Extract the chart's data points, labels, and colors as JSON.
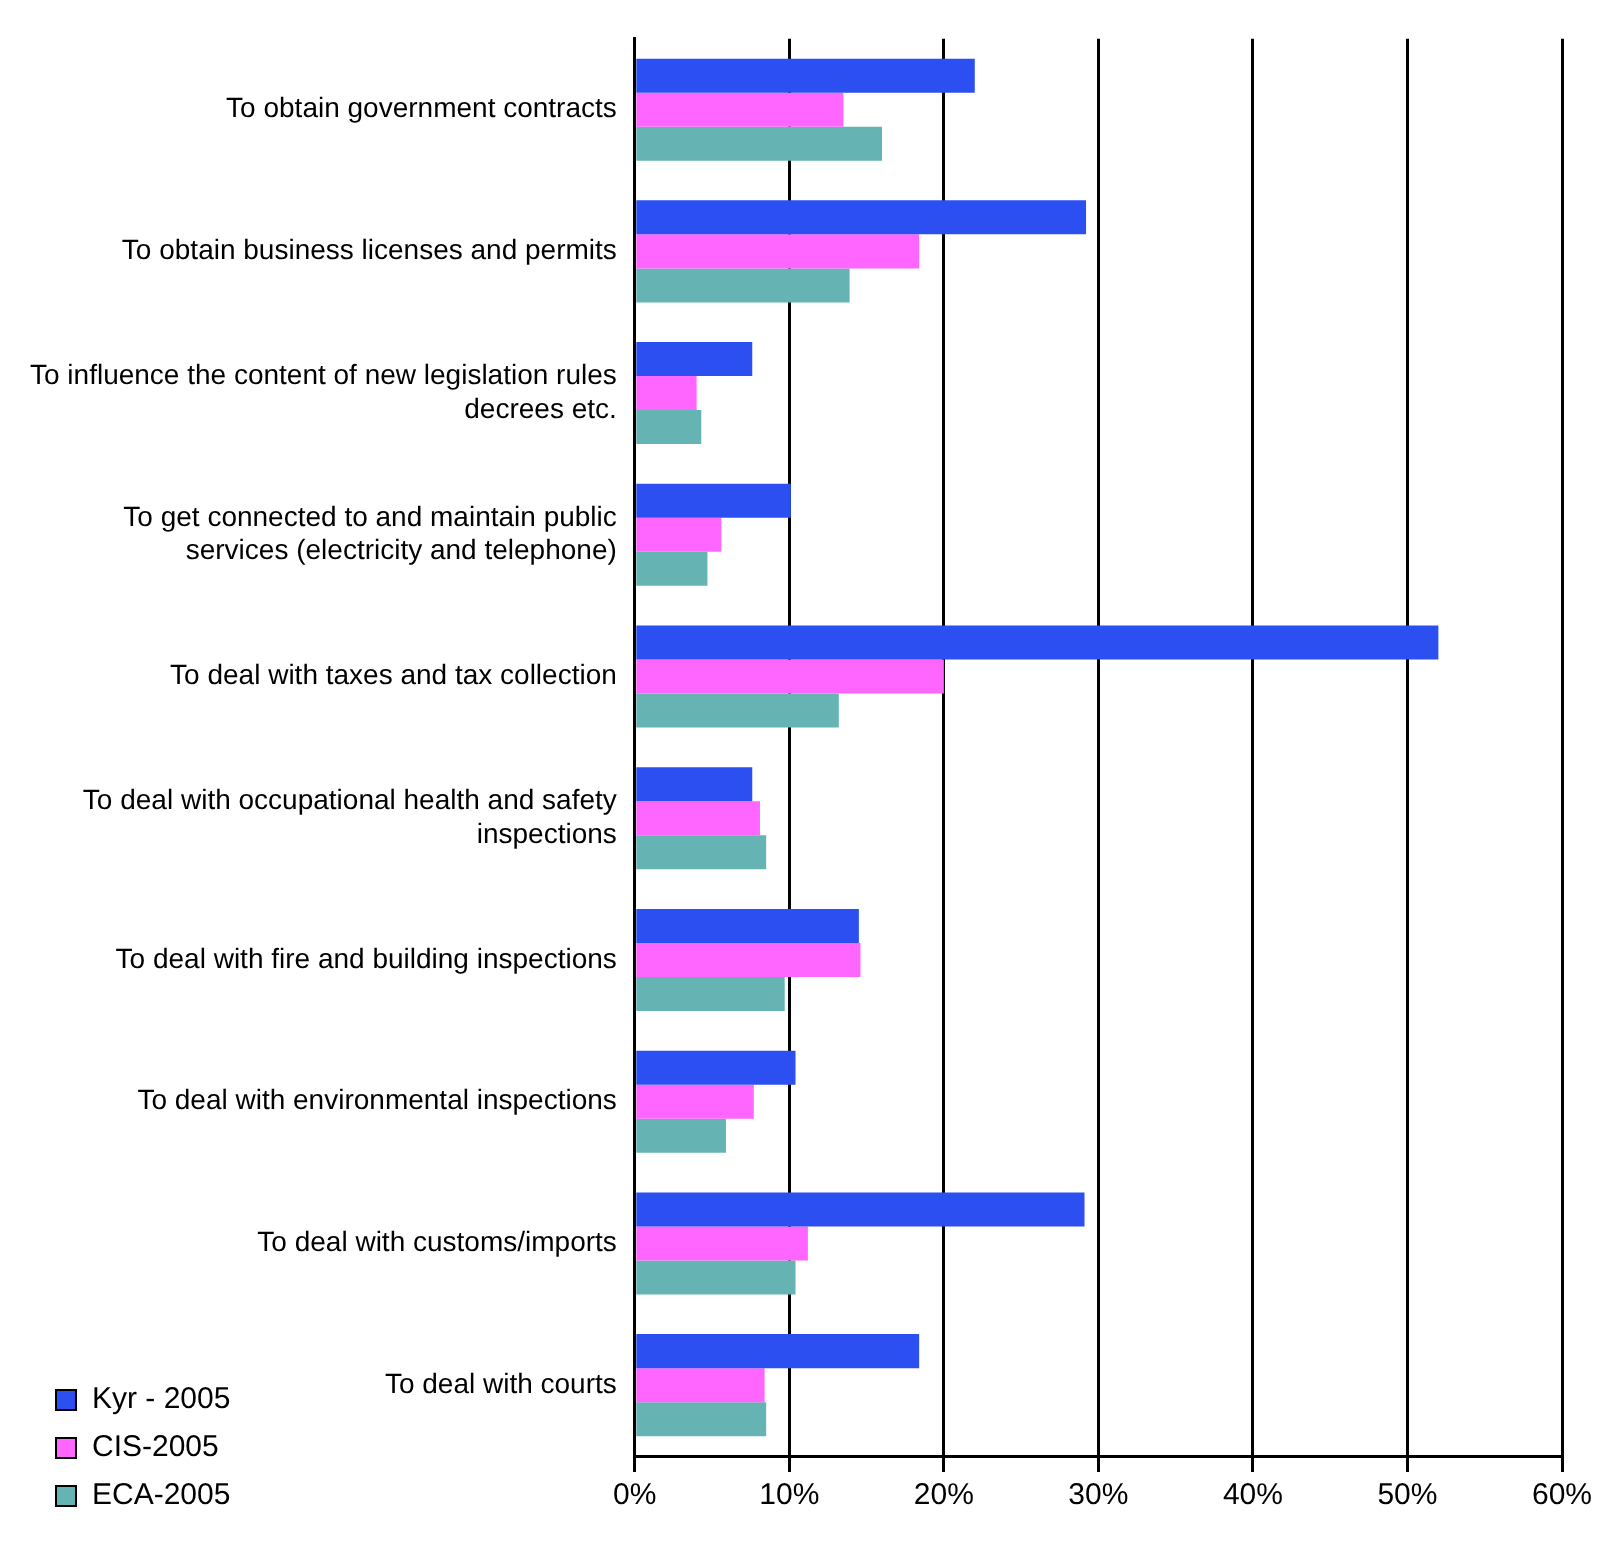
{
  "chart_data": {
    "type": "bar",
    "orientation": "horizontal",
    "categories": [
      "To obtain government contracts",
      "To obtain business licenses and permits",
      "To influence the content of new legislation rules decrees etc.",
      "To get connected to and maintain public services (electricity and telephone)",
      "To deal with taxes and tax collection",
      "To deal with occupational health and safety inspections",
      "To deal with fire and building inspections",
      "To deal with environmental inspections",
      "To deal with customs/imports",
      "To deal with courts"
    ],
    "series": [
      {
        "name": "Kyr - 2005",
        "color": "#2b4ff0",
        "values": [
          22,
          29.2,
          7.6,
          10.1,
          52,
          7.6,
          14.5,
          10.4,
          29.1,
          18.4
        ]
      },
      {
        "name": "CIS-2005",
        "color": "#ff66ff",
        "values": [
          13.5,
          18.4,
          4,
          5.6,
          20,
          8.1,
          14.6,
          7.7,
          11.2,
          8.4
        ]
      },
      {
        "name": "ECA-2005",
        "color": "#66b3b3",
        "values": [
          16,
          13.9,
          4.3,
          4.7,
          13.2,
          8.5,
          9.7,
          5.9,
          10.4,
          8.5
        ]
      }
    ],
    "xlim": [
      0,
      60
    ],
    "xticks": [
      {
        "value": 0,
        "label": "0%"
      },
      {
        "value": 10,
        "label": "10%"
      },
      {
        "value": 20,
        "label": "20%"
      },
      {
        "value": 30,
        "label": "30%"
      },
      {
        "value": 40,
        "label": "40%"
      },
      {
        "value": 50,
        "label": "50%"
      },
      {
        "value": 60,
        "label": "60%"
      }
    ],
    "grid": "x",
    "legend": "bottom left"
  }
}
